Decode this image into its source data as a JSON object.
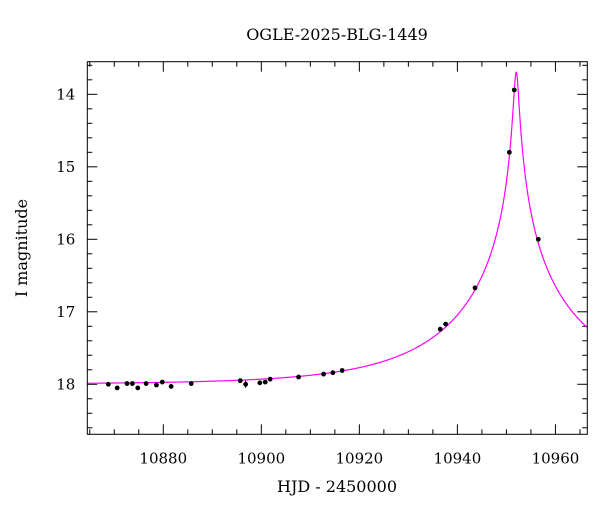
{
  "chart_data": {
    "type": "scatter",
    "title": "OGLE-2025-BLG-1449",
    "xlabel": "HJD - 2450000",
    "ylabel": "I magnitude",
    "xlim": [
      10864.5,
      10966.5
    ],
    "ylim": [
      18.69,
      13.55
    ],
    "y_inverted": true,
    "x_major_ticks": [
      10880,
      10900,
      10920,
      10940,
      10960
    ],
    "x_tick_labels": [
      "10880",
      "10900",
      "10920",
      "10940",
      "10960"
    ],
    "x_minor_step": 5,
    "y_major_ticks": [
      14,
      15,
      16,
      17,
      18
    ],
    "y_tick_labels": [
      "14",
      "15",
      "16",
      "17",
      "18"
    ],
    "y_minor_step": 0.2,
    "grid": false,
    "colors": {
      "data": "#000000",
      "model": "#ff00ff"
    },
    "series": [
      {
        "name": "data",
        "x": [
          10868.8,
          10870.6,
          10872.6,
          10873.7,
          10874.8,
          10876.5,
          10878.6,
          10879.8,
          10881.6,
          10885.7,
          10895.7,
          10896.8,
          10899.7,
          10900.8,
          10901.8,
          10907.6,
          10912.7,
          10914.6,
          10916.5,
          10936.5,
          10937.6,
          10943.6,
          10950.6,
          10951.6,
          10956.5
        ],
        "y": [
          18.0,
          18.05,
          17.99,
          17.99,
          18.05,
          17.99,
          18.01,
          17.97,
          18.03,
          17.99,
          17.95,
          18.0,
          17.98,
          17.97,
          17.93,
          17.9,
          17.86,
          17.84,
          17.81,
          17.24,
          17.17,
          16.67,
          14.8,
          13.94,
          16.0
        ],
        "err": [
          0.03,
          0.02,
          0.02,
          0.02,
          0.02,
          0.02,
          0.02,
          0.02,
          0.02,
          0.02,
          0.03,
          0.05,
          0.02,
          0.02,
          0.02,
          0.02,
          0.02,
          0.02,
          0.02,
          0.02,
          0.02,
          0.02,
          0.02,
          0.02,
          0.02
        ]
      },
      {
        "name": "model",
        "type": "line",
        "model": "point-lens",
        "params": {
          "t0": 10952.0,
          "u0": 0.019,
          "tE": 27,
          "baseline_mag": 18.0
        }
      }
    ]
  }
}
